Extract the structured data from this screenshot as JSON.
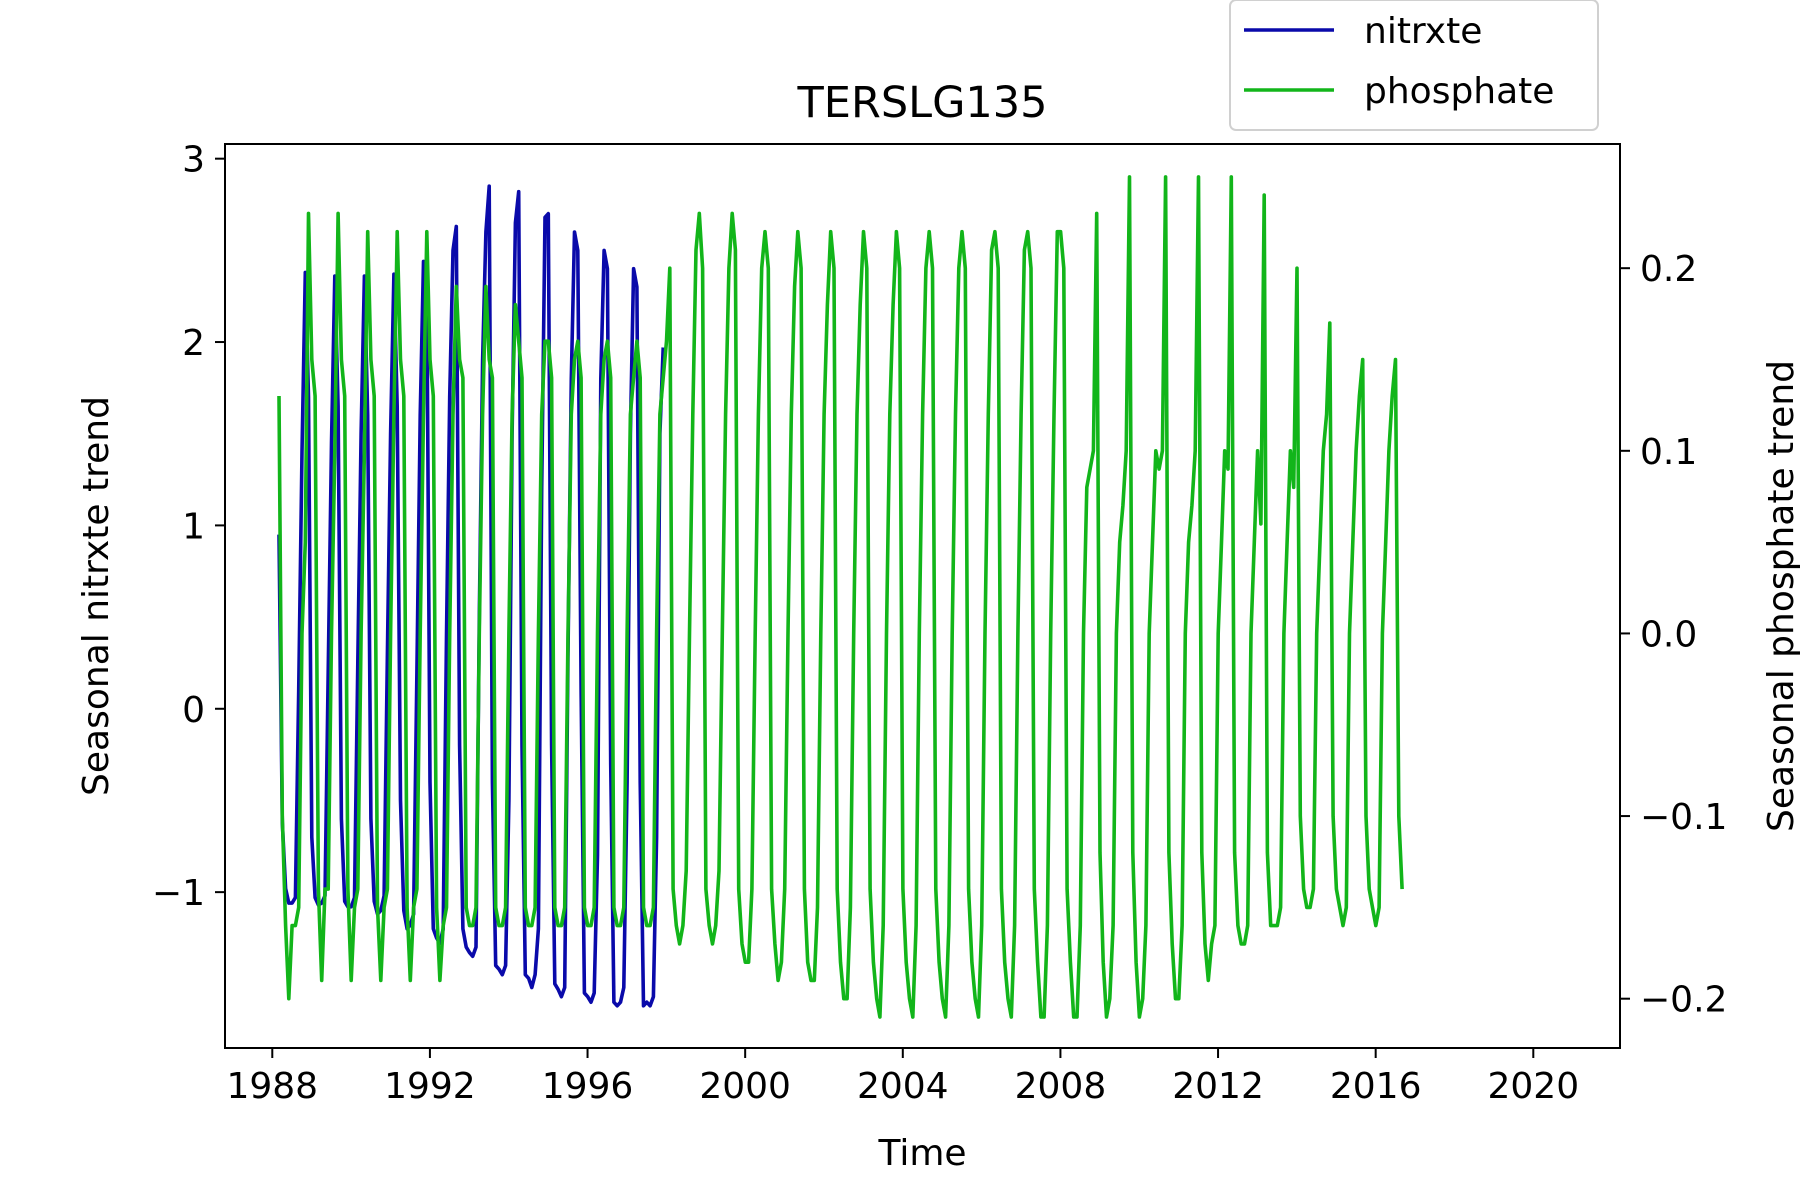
{
  "chart_data": {
    "type": "line",
    "title": "TERSLG135",
    "xlabel": "Time",
    "ylabel_left": "Seasonal nitrxte trend",
    "ylabel_right": "Seasonal phosphate trend",
    "xlim": [
      1986.8,
      2022.2
    ],
    "ylim_left": [
      -1.85,
      3.08
    ],
    "ylim_right": [
      -0.227,
      0.268
    ],
    "x_ticks": [
      1988,
      1992,
      1996,
      2000,
      2004,
      2008,
      2012,
      2016,
      2020
    ],
    "x_tick_labels": [
      "1988",
      "1992",
      "1996",
      "2000",
      "2004",
      "2008",
      "2012",
      "2016",
      "2020"
    ],
    "y_left_ticks": [
      -1,
      0,
      1,
      2,
      3
    ],
    "y_left_tick_labels": [
      "−1",
      "0",
      "1",
      "2",
      "3"
    ],
    "y_right_ticks": [
      -0.2,
      -0.1,
      0.0,
      0.1,
      0.2
    ],
    "y_right_tick_labels": [
      "−0.2",
      "−0.1",
      "0.0",
      "0.1",
      "0.2"
    ],
    "legend_position": "top-right, above plot",
    "grid": false,
    "series": [
      {
        "name": "nitrxte",
        "axis": "left",
        "color": "#0a0aaa",
        "x_start": 1988.17,
        "x_step": 0.0833333,
        "values": [
          0.95,
          -0.62,
          -0.98,
          -1.06,
          -1.06,
          -1.03,
          0.1,
          1.4,
          2.38,
          1.7,
          -0.7,
          -1.03,
          -1.07,
          -1.06,
          -1.02,
          0.2,
          1.45,
          2.36,
          1.65,
          -0.6,
          -1.05,
          -1.08,
          -1.08,
          -1.03,
          0.25,
          1.5,
          2.36,
          1.6,
          -0.6,
          -1.05,
          -1.12,
          -1.1,
          -1.02,
          0.3,
          1.5,
          2.37,
          1.65,
          -0.5,
          -1.1,
          -1.2,
          -1.18,
          -1.12,
          0.2,
          1.6,
          2.44,
          2.3,
          -0.4,
          -1.2,
          -1.25,
          -1.28,
          -1.2,
          0.4,
          1.7,
          2.5,
          2.63,
          -0.2,
          -1.2,
          -1.3,
          -1.33,
          -1.35,
          -1.3,
          0.5,
          1.9,
          2.6,
          2.85,
          -0.4,
          -1.4,
          -1.42,
          -1.45,
          -1.4,
          -0.5,
          1.5,
          2.65,
          2.82,
          -0.2,
          -1.45,
          -1.47,
          -1.52,
          -1.45,
          -1.2,
          1.2,
          2.68,
          2.7,
          -0.2,
          -1.5,
          -1.53,
          -1.57,
          -1.52,
          0.3,
          1.8,
          2.6,
          2.5,
          0.1,
          -1.55,
          -1.57,
          -1.6,
          -1.55,
          -0.8,
          1.8,
          2.5,
          2.4,
          -0.3,
          -1.6,
          -1.62,
          -1.6,
          -1.52,
          -0.4,
          1.5,
          2.4,
          2.3,
          -0.4,
          -1.62,
          -1.6,
          -1.62,
          -1.57,
          -0.7,
          1.5,
          1.97
        ]
      },
      {
        "name": "phosphate",
        "axis": "right",
        "color": "#12b51a",
        "x_start": 1988.17,
        "x_step": 0.0833333,
        "values": [
          0.13,
          -0.1,
          -0.16,
          -0.2,
          -0.16,
          -0.16,
          -0.15,
          0.0,
          0.05,
          0.23,
          0.15,
          0.13,
          -0.14,
          -0.19,
          -0.14,
          -0.14,
          0.0,
          0.1,
          0.23,
          0.15,
          0.13,
          -0.14,
          -0.19,
          -0.15,
          -0.14,
          0.0,
          0.1,
          0.22,
          0.15,
          0.13,
          -0.15,
          -0.19,
          -0.15,
          -0.14,
          0.0,
          0.12,
          0.22,
          0.15,
          0.13,
          -0.15,
          -0.19,
          -0.15,
          -0.14,
          0.0,
          0.12,
          0.22,
          0.15,
          0.13,
          -0.15,
          -0.19,
          -0.16,
          -0.15,
          0.0,
          0.12,
          0.19,
          0.15,
          0.14,
          -0.15,
          -0.16,
          -0.16,
          -0.15,
          0.0,
          0.12,
          0.19,
          0.15,
          0.14,
          -0.15,
          -0.16,
          -0.16,
          -0.15,
          0.0,
          0.12,
          0.18,
          0.16,
          0.14,
          -0.15,
          -0.16,
          -0.16,
          -0.15,
          0.0,
          0.12,
          0.16,
          0.16,
          0.14,
          -0.15,
          -0.16,
          -0.16,
          -0.15,
          0.0,
          0.12,
          0.15,
          0.16,
          0.14,
          -0.15,
          -0.16,
          -0.16,
          -0.15,
          0.0,
          0.12,
          0.15,
          0.16,
          0.14,
          -0.15,
          -0.16,
          -0.16,
          -0.15,
          0.0,
          0.12,
          0.14,
          0.16,
          0.14,
          -0.15,
          -0.16,
          -0.16,
          -0.15,
          0.0,
          0.12,
          0.14,
          0.16,
          0.2,
          -0.14,
          -0.16,
          -0.17,
          -0.16,
          -0.13,
          0.0,
          0.12,
          0.21,
          0.23,
          0.2,
          -0.14,
          -0.16,
          -0.17,
          -0.16,
          -0.13,
          0.0,
          0.12,
          0.2,
          0.23,
          0.21,
          -0.14,
          -0.17,
          -0.18,
          -0.18,
          -0.14,
          0.0,
          0.12,
          0.2,
          0.22,
          0.2,
          -0.14,
          -0.17,
          -0.19,
          -0.18,
          -0.14,
          0.0,
          0.12,
          0.19,
          0.22,
          0.2,
          -0.14,
          -0.18,
          -0.19,
          -0.19,
          -0.15,
          0.0,
          0.12,
          0.18,
          0.22,
          0.2,
          -0.14,
          -0.18,
          -0.2,
          -0.2,
          -0.15,
          0.0,
          0.12,
          0.18,
          0.22,
          0.2,
          -0.14,
          -0.18,
          -0.2,
          -0.21,
          -0.16,
          0.0,
          0.12,
          0.18,
          0.22,
          0.2,
          -0.14,
          -0.18,
          -0.2,
          -0.21,
          -0.16,
          0.0,
          0.12,
          0.2,
          0.22,
          0.2,
          -0.14,
          -0.18,
          -0.2,
          -0.21,
          -0.16,
          0.0,
          0.12,
          0.2,
          0.22,
          0.2,
          -0.14,
          -0.18,
          -0.2,
          -0.21,
          -0.16,
          0.0,
          0.12,
          0.21,
          0.22,
          0.2,
          -0.14,
          -0.18,
          -0.2,
          -0.21,
          -0.16,
          0.0,
          0.12,
          0.21,
          0.22,
          0.2,
          -0.14,
          -0.18,
          -0.21,
          -0.21,
          -0.16,
          0.0,
          0.12,
          0.22,
          0.22,
          0.2,
          -0.14,
          -0.18,
          -0.21,
          -0.21,
          -0.16,
          0.0,
          0.08,
          0.09,
          0.1,
          0.23,
          -0.12,
          -0.18,
          -0.21,
          -0.2,
          -0.16,
          0.0,
          0.05,
          0.07,
          0.1,
          0.25,
          -0.12,
          -0.18,
          -0.21,
          -0.2,
          -0.16,
          0.0,
          0.05,
          0.1,
          0.09,
          0.1,
          0.25,
          -0.12,
          -0.17,
          -0.2,
          -0.2,
          -0.16,
          0.0,
          0.05,
          0.07,
          0.1,
          0.25,
          -0.12,
          -0.17,
          -0.19,
          -0.17,
          -0.16,
          0.0,
          0.05,
          0.1,
          0.09,
          0.25,
          -0.12,
          -0.16,
          -0.17,
          -0.17,
          -0.16,
          0.0,
          0.05,
          0.1,
          0.06,
          0.24,
          -0.12,
          -0.16,
          -0.16,
          -0.16,
          -0.15,
          0.0,
          0.05,
          0.1,
          0.08,
          0.2,
          -0.1,
          -0.14,
          -0.15,
          -0.15,
          -0.14,
          0.0,
          0.05,
          0.1,
          0.12,
          0.17,
          -0.1,
          -0.14,
          -0.15,
          -0.16,
          -0.15,
          0.0,
          0.05,
          0.1,
          0.13,
          0.15,
          -0.1,
          -0.14,
          -0.15,
          -0.16,
          -0.15,
          0.0,
          0.05,
          0.1,
          0.13,
          0.15,
          -0.1,
          -0.14
        ]
      }
    ]
  }
}
